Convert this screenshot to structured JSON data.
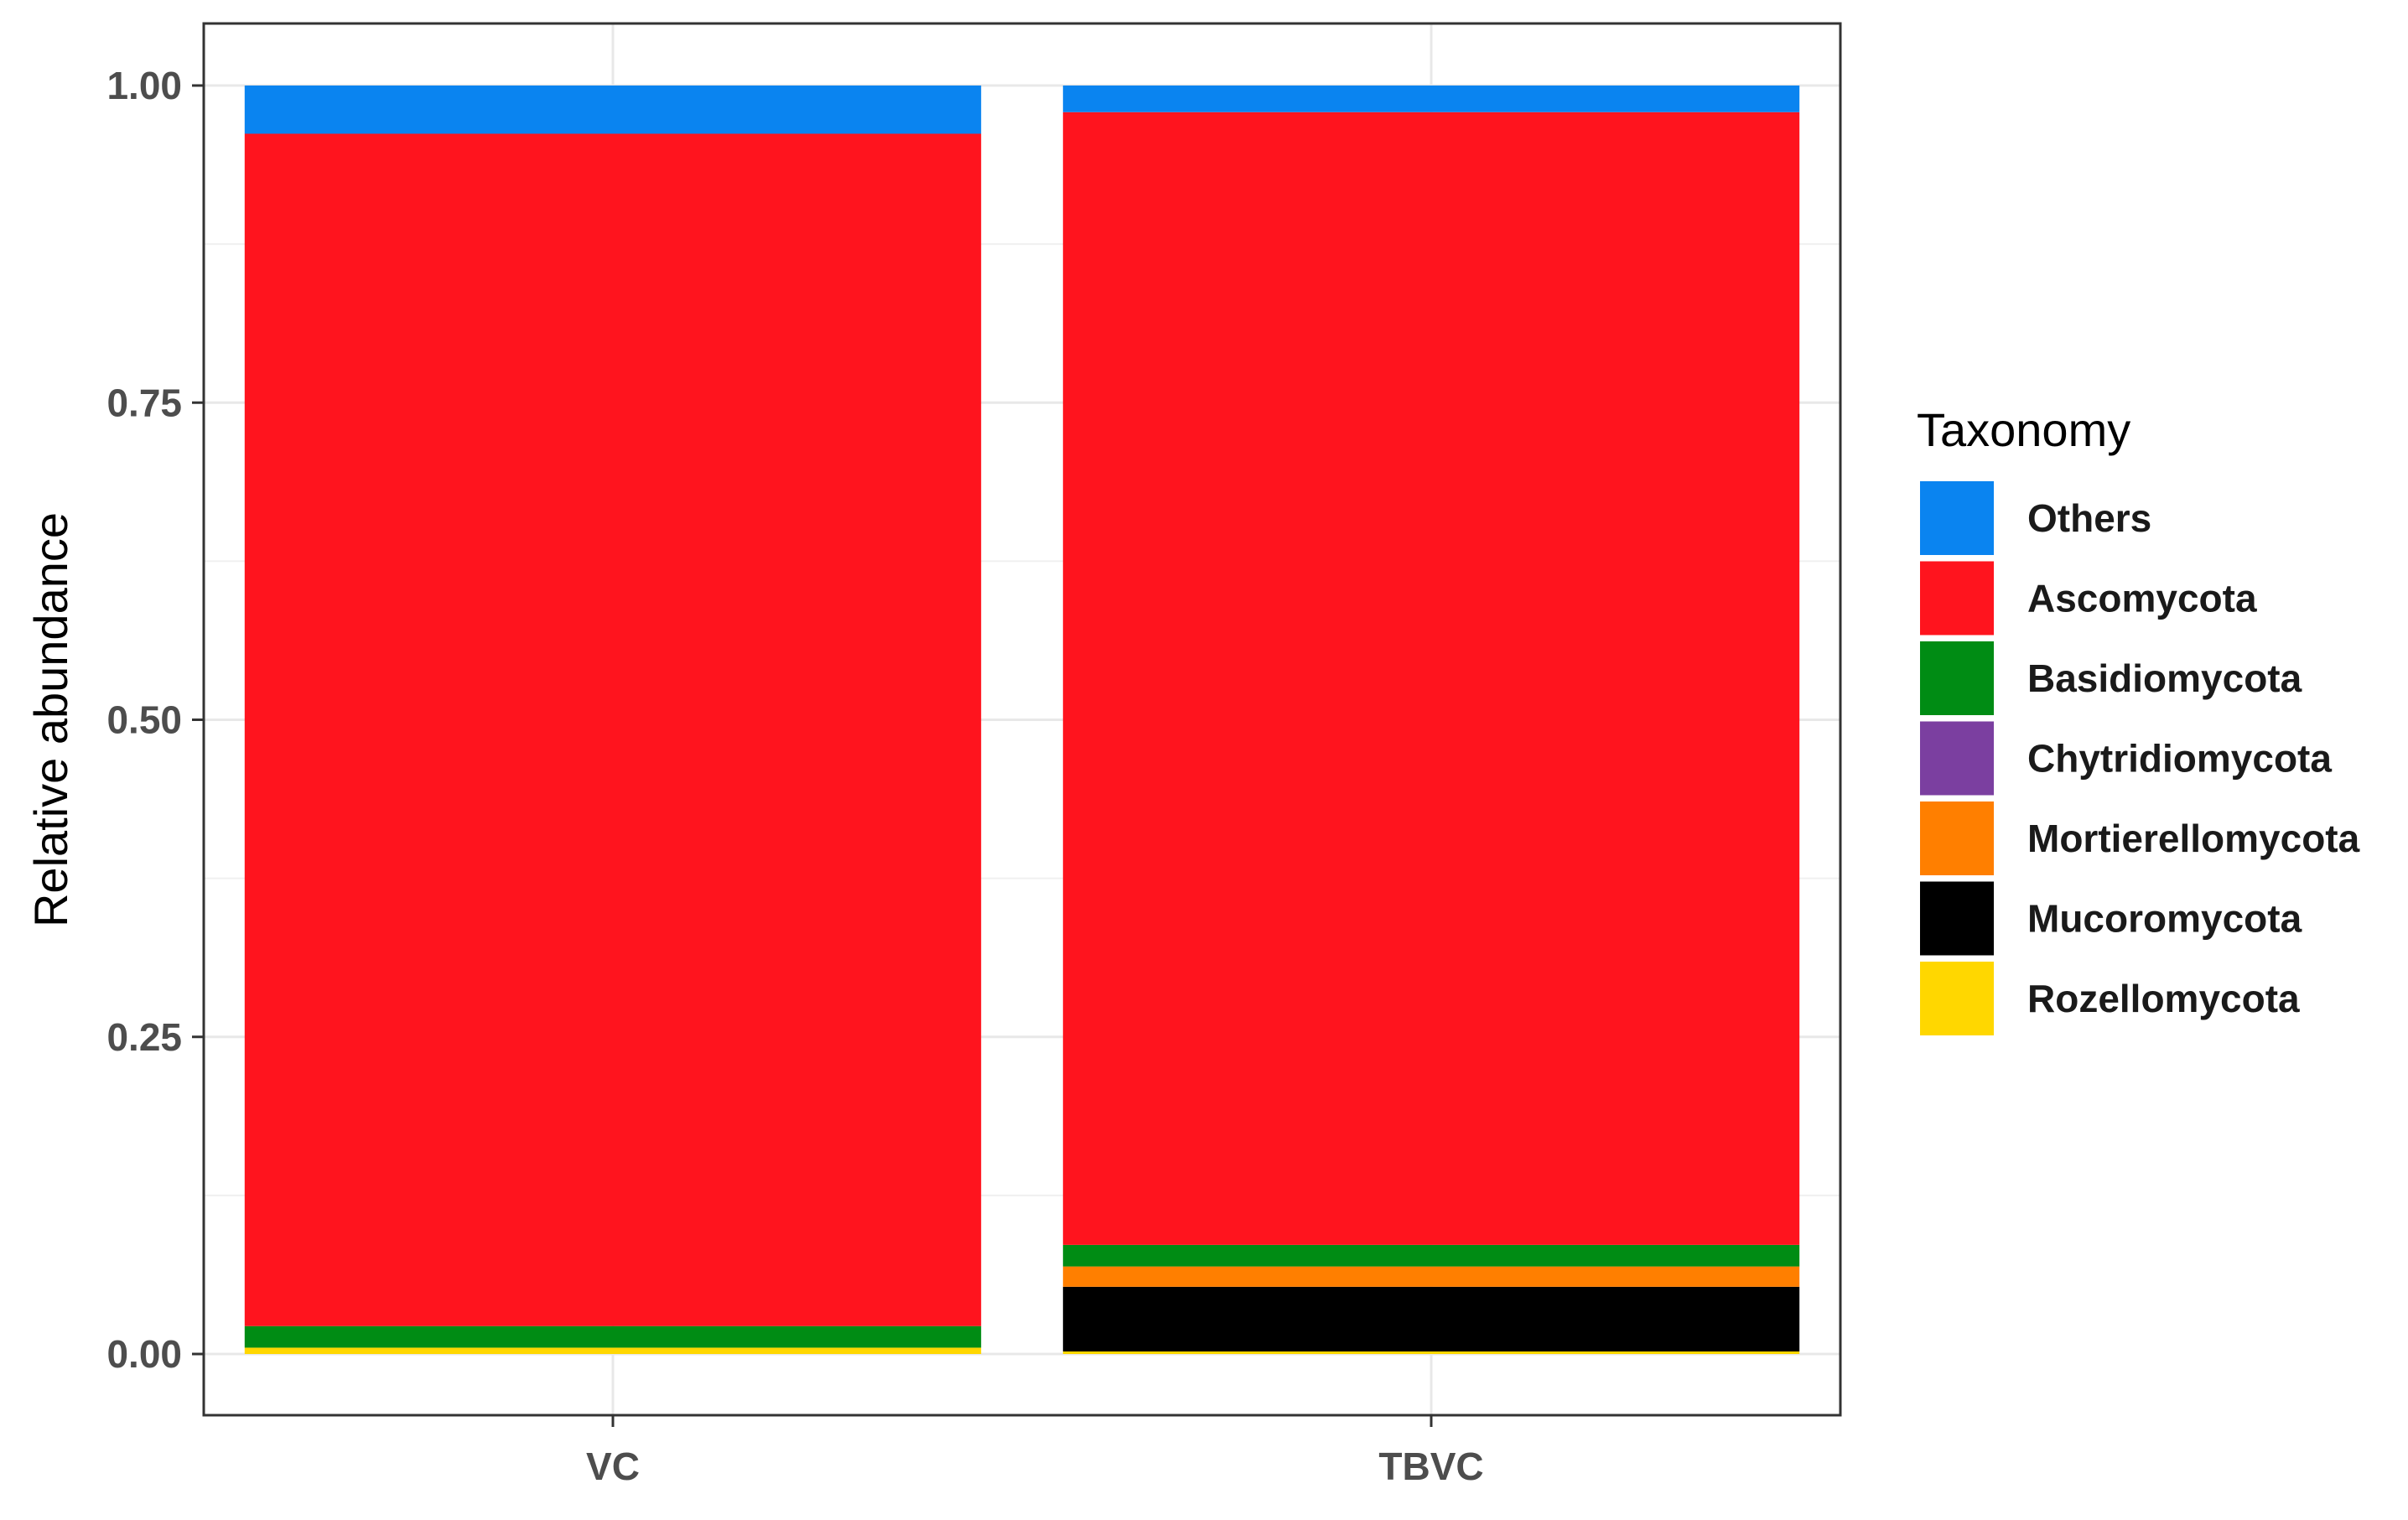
{
  "chart_data": {
    "type": "bar",
    "stacked": true,
    "title": "",
    "xlabel": "",
    "ylabel": "Relative abundance",
    "ylim": [
      0,
      1
    ],
    "yticks": [
      "0.00",
      "0.25",
      "0.50",
      "0.75",
      "1.00"
    ],
    "ytick_values": [
      0,
      0.25,
      0.5,
      0.75,
      1
    ],
    "categories": [
      "VC",
      "TBVC"
    ],
    "legend_title": "Taxonomy",
    "legend_position": "right",
    "grid": true,
    "series": [
      {
        "name": "Others",
        "color": "#0A84F0",
        "values": [
          0.038,
          0.021
        ]
      },
      {
        "name": "Ascomycota",
        "color": "#FF141E",
        "values": [
          0.94,
          0.893
        ]
      },
      {
        "name": "Basidiomycota",
        "color": "#008C14",
        "values": [
          0.017,
          0.017
        ]
      },
      {
        "name": "Chytridiomycota",
        "color": "#7B3FA0",
        "values": [
          0.0,
          0.0
        ]
      },
      {
        "name": "Mortierellomycota",
        "color": "#FF7F00",
        "values": [
          0.0,
          0.016
        ]
      },
      {
        "name": "Mucoromycota",
        "color": "#000000",
        "values": [
          0.0,
          0.051
        ]
      },
      {
        "name": "Rozellomycota",
        "color": "#FFD700",
        "values": [
          0.005,
          0.002
        ]
      }
    ]
  }
}
